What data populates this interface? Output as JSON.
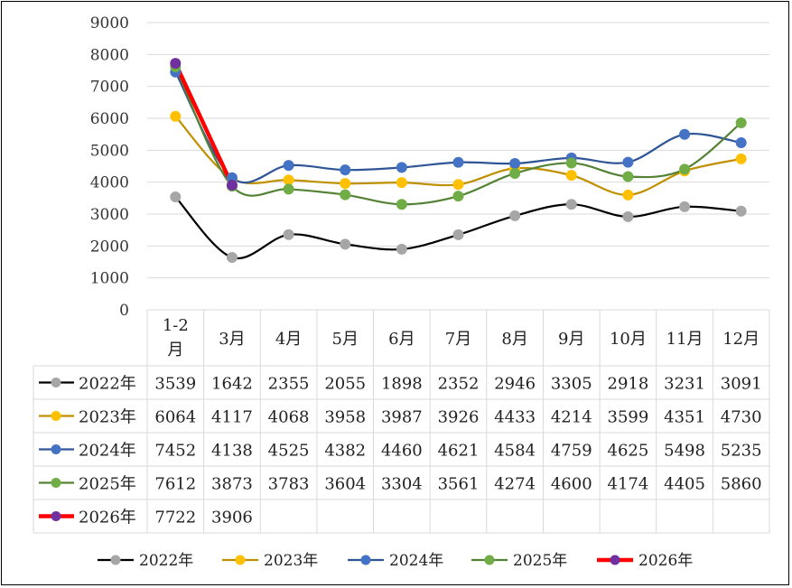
{
  "chart_data": {
    "type": "line",
    "categories": [
      "1-2月",
      "3月",
      "4月",
      "5月",
      "6月",
      "7月",
      "8月",
      "9月",
      "10月",
      "11月",
      "12月"
    ],
    "series": [
      {
        "name": "2022年",
        "values": [
          3539,
          1642,
          2355,
          2055,
          1898,
          2352,
          2946,
          3305,
          2918,
          3231,
          3091
        ],
        "color": "#000000",
        "marker": "#a6a6a6"
      },
      {
        "name": "2023年",
        "values": [
          6064,
          4117,
          4068,
          3958,
          3987,
          3926,
          4433,
          4214,
          3599,
          4351,
          4730
        ],
        "color": "#bf9000",
        "marker": "#ffc000"
      },
      {
        "name": "2024年",
        "values": [
          7452,
          4138,
          4525,
          4382,
          4460,
          4621,
          4584,
          4759,
          4625,
          5498,
          5235
        ],
        "color": "#2f5597",
        "marker": "#4472c4"
      },
      {
        "name": "2025年",
        "values": [
          7612,
          3873,
          3783,
          3604,
          3304,
          3561,
          4274,
          4600,
          4174,
          4405,
          5860
        ],
        "color": "#548235",
        "marker": "#70ad47"
      },
      {
        "name": "2026年",
        "values": [
          7722,
          3906,
          null,
          null,
          null,
          null,
          null,
          null,
          null,
          null,
          null
        ],
        "color": "#ff0000",
        "marker": "#7030a0"
      }
    ],
    "yticks": [
      "0",
      "1000",
      "2000",
      "3000",
      "4000",
      "5000",
      "6000",
      "7000",
      "8000",
      "9000"
    ],
    "ylim": [
      0,
      9000
    ],
    "grid": true,
    "legend": "bottom",
    "data_table": true
  }
}
